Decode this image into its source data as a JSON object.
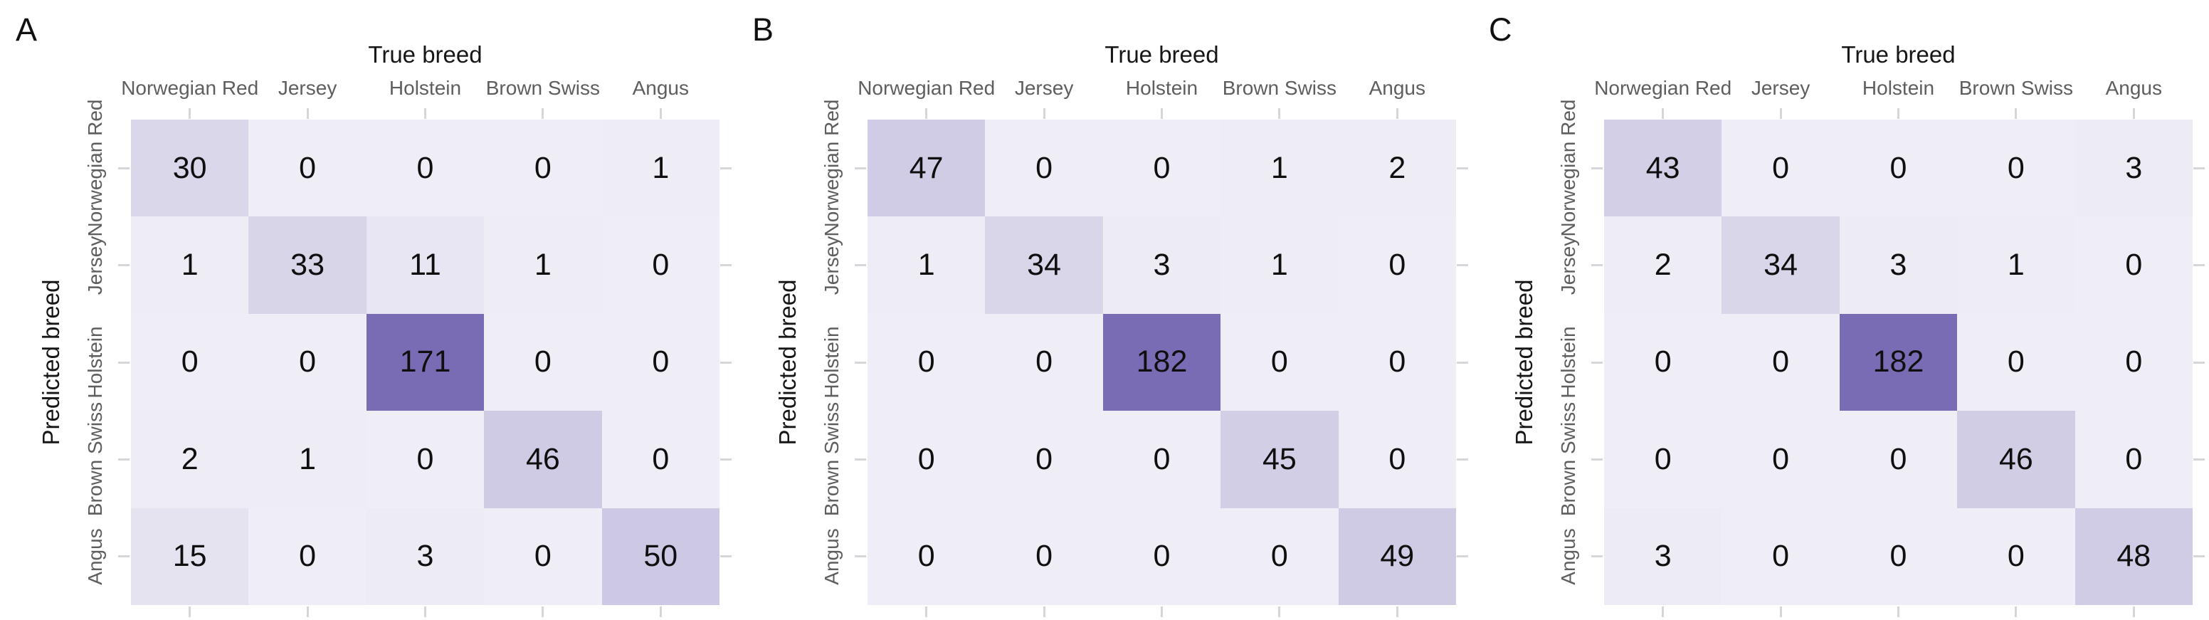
{
  "figure": {
    "x_axis_label": "True breed",
    "y_axis_label": "Predicted breed",
    "categories": [
      "Norwegian Red",
      "Jersey",
      "Holstein",
      "Brown Swiss",
      "Angus"
    ],
    "colors": {
      "cell_low": "#efeef6",
      "cell_high": "#7a6cb4",
      "axis_title_text": "#161616",
      "category_label_text": "#5e5e5e",
      "cell_value_text": "#0f0f0f",
      "tick": "#d5d5da"
    }
  },
  "chart_data": [
    {
      "type": "heatmap",
      "panel_label": "A",
      "xlabel": "True breed",
      "ylabel": "Predicted breed",
      "x_categories": [
        "Norwegian Red",
        "Jersey",
        "Holstein",
        "Brown Swiss",
        "Angus"
      ],
      "y_categories": [
        "Norwegian Red",
        "Jersey",
        "Holstein",
        "Brown Swiss",
        "Angus"
      ],
      "values": [
        [
          30,
          0,
          0,
          0,
          1
        ],
        [
          1,
          33,
          11,
          1,
          0
        ],
        [
          0,
          0,
          171,
          0,
          0
        ],
        [
          2,
          1,
          0,
          46,
          0
        ],
        [
          15,
          0,
          3,
          0,
          50
        ]
      ]
    },
    {
      "type": "heatmap",
      "panel_label": "B",
      "xlabel": "True breed",
      "ylabel": "Predicted breed",
      "x_categories": [
        "Norwegian Red",
        "Jersey",
        "Holstein",
        "Brown Swiss",
        "Angus"
      ],
      "y_categories": [
        "Norwegian Red",
        "Jersey",
        "Holstein",
        "Brown Swiss",
        "Angus"
      ],
      "values": [
        [
          47,
          0,
          0,
          1,
          2
        ],
        [
          1,
          34,
          3,
          1,
          0
        ],
        [
          0,
          0,
          182,
          0,
          0
        ],
        [
          0,
          0,
          0,
          45,
          0
        ],
        [
          0,
          0,
          0,
          0,
          49
        ]
      ]
    },
    {
      "type": "heatmap",
      "panel_label": "C",
      "xlabel": "True breed",
      "ylabel": "Predicted breed",
      "x_categories": [
        "Norwegian Red",
        "Jersey",
        "Holstein",
        "Brown Swiss",
        "Angus"
      ],
      "y_categories": [
        "Norwegian Red",
        "Jersey",
        "Holstein",
        "Brown Swiss",
        "Angus"
      ],
      "values": [
        [
          43,
          0,
          0,
          0,
          3
        ],
        [
          2,
          34,
          3,
          1,
          0
        ],
        [
          0,
          0,
          182,
          0,
          0
        ],
        [
          0,
          0,
          0,
          46,
          0
        ],
        [
          3,
          0,
          0,
          0,
          48
        ]
      ]
    }
  ]
}
